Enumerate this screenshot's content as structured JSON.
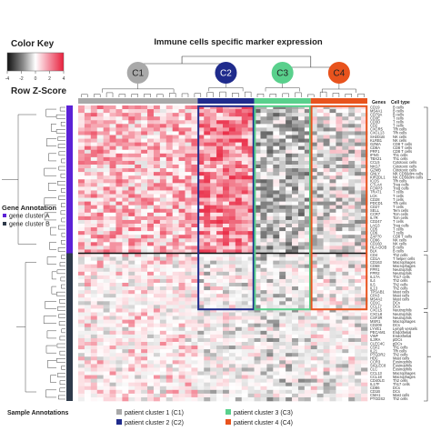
{
  "chart_data": {
    "type": "heatmap",
    "title": "Immune cells specific marker expression",
    "color_key": {
      "title": "Color Key",
      "axis_label": "Row Z-Score",
      "ticks": [
        "-4",
        "-2",
        "0",
        "2",
        "4"
      ],
      "range": [
        -4,
        4
      ],
      "colors": {
        "low": "#1a1a1a",
        "mid": "#ffffff",
        "high": "#e8203c"
      }
    },
    "sample_clusters": [
      {
        "id": "C1",
        "color": "#a9a9a9",
        "columns": 19
      },
      {
        "id": "C2",
        "color": "#1f2b8c",
        "columns": 9
      },
      {
        "id": "C3",
        "color": "#59d08c",
        "columns": 9
      },
      {
        "id": "C4",
        "color": "#e8531d",
        "columns": 9
      }
    ],
    "gene_annotation": {
      "title": "Gene Annotation",
      "groups": [
        {
          "label": "gene cluster A",
          "color": "#5b21d6",
          "rows": 40
        },
        {
          "label": "gene cluster B",
          "color": "#2e3a4a",
          "rows": 40
        }
      ]
    },
    "sample_annotation": {
      "title": "Sample Annotations",
      "items": [
        {
          "label": "patient cluster 1 (C1)",
          "color": "#a9a9a9"
        },
        {
          "label": "patient cluster 2 (C2)",
          "color": "#1f2b8c"
        },
        {
          "label": "patient cluster 3 (C3)",
          "color": "#59d08c"
        },
        {
          "label": "patient cluster 4 (C4)",
          "color": "#e8531d"
        }
      ]
    },
    "column_headers": {
      "genes": "Genes",
      "cell_type": "Cell type"
    },
    "rows": [
      {
        "gene": "CD19",
        "cell": "B cells"
      },
      {
        "gene": "MS4A1",
        "cell": "B cells"
      },
      {
        "gene": "CD79A",
        "cell": "B cells"
      },
      {
        "gene": "CD3E",
        "cell": "T cells"
      },
      {
        "gene": "CD3D",
        "cell": "T cells"
      },
      {
        "gene": "CD2",
        "cell": "T cells"
      },
      {
        "gene": "CXCR5",
        "cell": "Tfh cells"
      },
      {
        "gene": "CXCL13",
        "cell": "Tfh cells"
      },
      {
        "gene": "SH2D1B",
        "cell": "NK cells"
      },
      {
        "gene": "KLRB1",
        "cell": "NK cells"
      },
      {
        "gene": "GZMA",
        "cell": "CD8 T cells"
      },
      {
        "gene": "CD8A",
        "cell": "CD8 T cells"
      },
      {
        "gene": "PRF1",
        "cell": "CD8 T cells"
      },
      {
        "gene": "IFNG",
        "cell": "Th1 cells"
      },
      {
        "gene": "TBX21",
        "cell": "Th1 cells"
      },
      {
        "gene": "CCL5",
        "cell": "Cytotoxic cells"
      },
      {
        "gene": "NKG7",
        "cell": "Cytotoxic cells"
      },
      {
        "gene": "GZMB",
        "cell": "Cytotoxic cells"
      },
      {
        "gene": "GNLY",
        "cell": "NK CD56dim cells"
      },
      {
        "gene": "KIR2DL1",
        "cell": "NK CD56dim cells"
      },
      {
        "gene": "ICOS",
        "cell": "Tfh cells"
      },
      {
        "gene": "CTLA4",
        "cell": "Treg cells"
      },
      {
        "gene": "FOXP3",
        "cell": "Treg cells"
      },
      {
        "gene": "TRAT1",
        "cell": "T cells"
      },
      {
        "gene": "LCK",
        "cell": "T cells"
      },
      {
        "gene": "CD28",
        "cell": "T cells"
      },
      {
        "gene": "PDCD1",
        "cell": "Tfh cells"
      },
      {
        "gene": "CD27",
        "cell": "T cells"
      },
      {
        "gene": "SELL",
        "cell": "Tem cells"
      },
      {
        "gene": "CCR7",
        "cell": "Tcm cells"
      },
      {
        "gene": "IL7R",
        "cell": "Tcm cells"
      },
      {
        "gene": "CD247",
        "cell": "T cells"
      },
      {
        "gene": "LAG3",
        "cell": "Treg cells"
      },
      {
        "gene": "CD5",
        "cell": "T cells"
      },
      {
        "gene": "CD6",
        "cell": "T cells"
      },
      {
        "gene": "ZAP70",
        "cell": "CD8 T cells"
      },
      {
        "gene": "CD96",
        "cell": "NK cells"
      },
      {
        "gene": "CD160",
        "cell": "NK cells"
      },
      {
        "gene": "HLA-DOB",
        "cell": "B cells"
      },
      {
        "gene": "BLK",
        "cell": "B cells"
      },
      {
        "gene": "CD4",
        "cell": "Th2 cells"
      },
      {
        "gene": "CD1A",
        "cell": "T helper cells"
      },
      {
        "gene": "CD163",
        "cell": "Macrophages"
      },
      {
        "gene": "CD68",
        "cell": "Macrophages"
      },
      {
        "gene": "FPR1",
        "cell": "Neutrophils"
      },
      {
        "gene": "FPR2",
        "cell": "Neutrophils"
      },
      {
        "gene": "IL17A",
        "cell": "Th17 cells"
      },
      {
        "gene": "IL4",
        "cell": "Th2 cells"
      },
      {
        "gene": "IL5",
        "cell": "Th2 cells"
      },
      {
        "gene": "IL13",
        "cell": "Th2 cells"
      },
      {
        "gene": "TPSAB1",
        "cell": "Mast cells"
      },
      {
        "gene": "CPA3",
        "cell": "Mast cells"
      },
      {
        "gene": "MS4A2",
        "cell": "Mast cells"
      },
      {
        "gene": "CD1C",
        "cell": "DCs"
      },
      {
        "gene": "CCL17",
        "cell": "DCs"
      },
      {
        "gene": "CXCL5",
        "cell": "Neutrophils"
      },
      {
        "gene": "CXCL8",
        "cell": "Neutrophils"
      },
      {
        "gene": "CSF3R",
        "cell": "Neutrophils"
      },
      {
        "gene": "MSR1",
        "cell": "Macrophages"
      },
      {
        "gene": "CD209",
        "cell": "DCs"
      },
      {
        "gene": "LYVE1",
        "cell": "Lymph vessels"
      },
      {
        "gene": "PECAM1",
        "cell": "Endothelial"
      },
      {
        "gene": "VWF",
        "cell": "Endothelial"
      },
      {
        "gene": "IL3RA",
        "cell": "pDCs"
      },
      {
        "gene": "CLEC4C",
        "cell": "pDCs"
      },
      {
        "gene": "CSF2",
        "cell": "Th1 cells"
      },
      {
        "gene": "IL21",
        "cell": "Tfh cells"
      },
      {
        "gene": "PTGDR2",
        "cell": "Th2 cells"
      },
      {
        "gene": "HDC",
        "cell": "Mast cells"
      },
      {
        "gene": "CCR3",
        "cell": "Eosinophils"
      },
      {
        "gene": "SIGLEC8",
        "cell": "Eosinophils"
      },
      {
        "gene": "CLC",
        "cell": "Eosinophils"
      },
      {
        "gene": "CCL13",
        "cell": "Macrophages"
      },
      {
        "gene": "CCL18",
        "cell": "Macrophages"
      },
      {
        "gene": "CD40LG",
        "cell": "Th2 cells"
      },
      {
        "gene": "IL17F",
        "cell": "Th17 cells"
      },
      {
        "gene": "CD86",
        "cell": "DCs"
      },
      {
        "gene": "CD1B",
        "cell": "DCs"
      },
      {
        "gene": "CMA1",
        "cell": "Mast cells"
      },
      {
        "gene": "PTGDS2",
        "cell": "Th2 cells"
      }
    ]
  }
}
